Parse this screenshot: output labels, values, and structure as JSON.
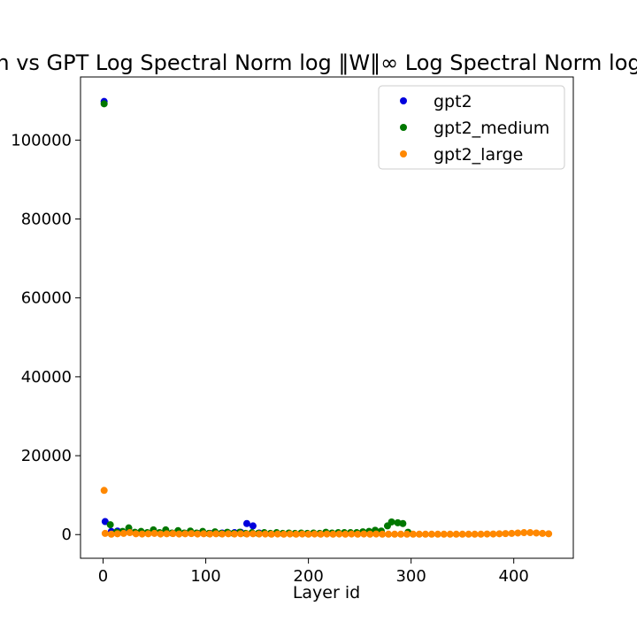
{
  "chart_data": {
    "type": "scatter",
    "title": "h vs GPT Log Spectral Norm log ‖W‖∞ Log Spectral Norm log",
    "xlabel": "Layer id",
    "ylabel": "",
    "xlim": [
      -22,
      458
    ],
    "ylim": [
      -6000,
      116000
    ],
    "xticks": [
      0,
      100,
      200,
      300,
      400
    ],
    "yticks": [
      0,
      20000,
      40000,
      60000,
      80000,
      100000
    ],
    "grid": false,
    "legend_position": "top-right",
    "series": [
      {
        "name": "gpt2",
        "color": "#0000dd",
        "points": [
          [
            1,
            109800
          ],
          [
            2,
            3300
          ],
          [
            8,
            800
          ],
          [
            14,
            900
          ],
          [
            20,
            500
          ],
          [
            26,
            600
          ],
          [
            32,
            400
          ],
          [
            38,
            350
          ],
          [
            44,
            300
          ],
          [
            50,
            350
          ],
          [
            56,
            300
          ],
          [
            62,
            400
          ],
          [
            68,
            300
          ],
          [
            74,
            350
          ],
          [
            80,
            300
          ],
          [
            86,
            350
          ],
          [
            92,
            300
          ],
          [
            98,
            300
          ],
          [
            104,
            300
          ],
          [
            110,
            350
          ],
          [
            116,
            400
          ],
          [
            122,
            400
          ],
          [
            128,
            500
          ],
          [
            134,
            600
          ],
          [
            140,
            2800
          ],
          [
            146,
            2200
          ],
          [
            152,
            400
          ]
        ]
      },
      {
        "name": "gpt2_medium",
        "color": "#007700",
        "points": [
          [
            1,
            109200
          ],
          [
            7,
            2500
          ],
          [
            13,
            600
          ],
          [
            19,
            800
          ],
          [
            25,
            1700
          ],
          [
            31,
            600
          ],
          [
            37,
            800
          ],
          [
            43,
            500
          ],
          [
            49,
            1200
          ],
          [
            55,
            500
          ],
          [
            61,
            1200
          ],
          [
            67,
            400
          ],
          [
            73,
            1000
          ],
          [
            79,
            400
          ],
          [
            85,
            900
          ],
          [
            91,
            400
          ],
          [
            97,
            800
          ],
          [
            103,
            300
          ],
          [
            109,
            700
          ],
          [
            115,
            300
          ],
          [
            121,
            600
          ],
          [
            127,
            300
          ],
          [
            133,
            600
          ],
          [
            139,
            300
          ],
          [
            145,
            500
          ],
          [
            151,
            300
          ],
          [
            157,
            500
          ],
          [
            163,
            300
          ],
          [
            169,
            500
          ],
          [
            175,
            300
          ],
          [
            181,
            400
          ],
          [
            187,
            300
          ],
          [
            193,
            400
          ],
          [
            199,
            300
          ],
          [
            205,
            400
          ],
          [
            211,
            300
          ],
          [
            217,
            600
          ],
          [
            223,
            400
          ],
          [
            229,
            500
          ],
          [
            235,
            500
          ],
          [
            241,
            500
          ],
          [
            247,
            500
          ],
          [
            253,
            700
          ],
          [
            259,
            800
          ],
          [
            265,
            1100
          ],
          [
            271,
            900
          ],
          [
            277,
            2200
          ],
          [
            281,
            3200
          ],
          [
            287,
            3000
          ],
          [
            292,
            2800
          ],
          [
            297,
            600
          ]
        ]
      },
      {
        "name": "gpt2_large",
        "color": "#ff8800",
        "points": [
          [
            1,
            11200
          ],
          [
            2,
            300
          ],
          [
            8,
            100
          ],
          [
            14,
            200
          ],
          [
            20,
            300
          ],
          [
            26,
            500
          ],
          [
            32,
            200
          ],
          [
            38,
            150
          ],
          [
            44,
            200
          ],
          [
            50,
            300
          ],
          [
            56,
            150
          ],
          [
            62,
            200
          ],
          [
            68,
            250
          ],
          [
            74,
            150
          ],
          [
            80,
            200
          ],
          [
            86,
            250
          ],
          [
            92,
            150
          ],
          [
            98,
            200
          ],
          [
            104,
            150
          ],
          [
            110,
            200
          ],
          [
            116,
            150
          ],
          [
            122,
            200
          ],
          [
            128,
            150
          ],
          [
            134,
            200
          ],
          [
            140,
            150
          ],
          [
            146,
            200
          ],
          [
            152,
            150
          ],
          [
            158,
            150
          ],
          [
            164,
            100
          ],
          [
            170,
            150
          ],
          [
            176,
            100
          ],
          [
            182,
            150
          ],
          [
            188,
            100
          ],
          [
            194,
            150
          ],
          [
            200,
            100
          ],
          [
            206,
            150
          ],
          [
            212,
            100
          ],
          [
            218,
            150
          ],
          [
            224,
            100
          ],
          [
            230,
            150
          ],
          [
            236,
            100
          ],
          [
            242,
            150
          ],
          [
            248,
            100
          ],
          [
            254,
            150
          ],
          [
            260,
            100
          ],
          [
            266,
            150
          ],
          [
            272,
            100
          ],
          [
            278,
            100
          ],
          [
            284,
            100
          ],
          [
            290,
            100
          ],
          [
            296,
            100
          ],
          [
            302,
            100
          ],
          [
            308,
            100
          ],
          [
            314,
            100
          ],
          [
            320,
            100
          ],
          [
            326,
            100
          ],
          [
            332,
            100
          ],
          [
            338,
            100
          ],
          [
            344,
            100
          ],
          [
            350,
            100
          ],
          [
            356,
            100
          ],
          [
            362,
            100
          ],
          [
            368,
            100
          ],
          [
            374,
            150
          ],
          [
            380,
            150
          ],
          [
            386,
            200
          ],
          [
            392,
            250
          ],
          [
            398,
            300
          ],
          [
            404,
            400
          ],
          [
            410,
            500
          ],
          [
            416,
            500
          ],
          [
            422,
            400
          ],
          [
            428,
            300
          ],
          [
            434,
            200
          ]
        ]
      }
    ]
  }
}
